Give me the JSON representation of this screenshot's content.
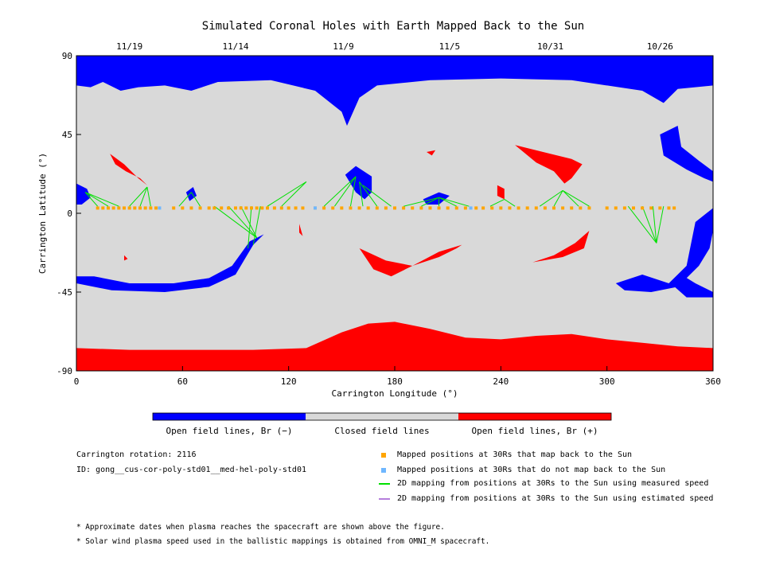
{
  "chart_data": {
    "type": "map",
    "title": "Simulated Coronal Holes with Earth Mapped Back to the Sun",
    "xlabel": "Carrington Longitude (°)",
    "ylabel": "Carrington Latitude (°)",
    "xlim": [
      0,
      360
    ],
    "ylim": [
      -90,
      90
    ],
    "x_ticks": [
      {
        "value": 0,
        "label": "0"
      },
      {
        "value": 60,
        "label": "60"
      },
      {
        "value": 120,
        "label": "120"
      },
      {
        "value": 180,
        "label": "180"
      },
      {
        "value": 240,
        "label": "240"
      },
      {
        "value": 300,
        "label": "300"
      },
      {
        "value": 360,
        "label": "360"
      }
    ],
    "y_ticks": [
      {
        "value": 90,
        "label": "90"
      },
      {
        "value": 45,
        "label": "45"
      },
      {
        "value": 0,
        "label": "0"
      },
      {
        "value": -45,
        "label": "-45"
      },
      {
        "value": -90,
        "label": "-90"
      }
    ],
    "top_date_ticks": [
      {
        "lon": 30,
        "label": "11/19"
      },
      {
        "lon": 90,
        "label": "11/14"
      },
      {
        "lon": 151,
        "label": "11/9"
      },
      {
        "lon": 211,
        "label": "11/5"
      },
      {
        "lon": 268,
        "label": "10/31"
      },
      {
        "lon": 330,
        "label": "10/26"
      }
    ],
    "colors": {
      "open_negative": "#0000ff",
      "closed": "#d9d9d9",
      "open_positive": "#ff0000",
      "mapped": "#ffa500",
      "not_mapped": "#6fb7ff",
      "measured_line": "#00e000",
      "estimated_line": "#b57edc"
    },
    "regions": [
      {
        "polarity": "negative",
        "points": [
          [
            0,
            90
          ],
          [
            360,
            90
          ],
          [
            360,
            73
          ],
          [
            340,
            71
          ],
          [
            332,
            63
          ],
          [
            320,
            70
          ],
          [
            280,
            76
          ],
          [
            240,
            77
          ],
          [
            200,
            76
          ],
          [
            170,
            73
          ],
          [
            160,
            66
          ],
          [
            153,
            50
          ],
          [
            150,
            58
          ],
          [
            135,
            70
          ],
          [
            110,
            76
          ],
          [
            80,
            75
          ],
          [
            65,
            70
          ],
          [
            50,
            73
          ],
          [
            35,
            72
          ],
          [
            25,
            70
          ],
          [
            15,
            75
          ],
          [
            8,
            72
          ],
          [
            0,
            73
          ]
        ]
      },
      {
        "polarity": "positive",
        "points": [
          [
            0,
            -90
          ],
          [
            360,
            -90
          ],
          [
            360,
            -77
          ],
          [
            340,
            -76
          ],
          [
            320,
            -74
          ],
          [
            300,
            -72
          ],
          [
            280,
            -69
          ],
          [
            260,
            -70
          ],
          [
            240,
            -72
          ],
          [
            220,
            -71
          ],
          [
            200,
            -66
          ],
          [
            180,
            -62
          ],
          [
            165,
            -63
          ],
          [
            150,
            -68
          ],
          [
            130,
            -77
          ],
          [
            100,
            -78
          ],
          [
            60,
            -78
          ],
          [
            30,
            -78
          ],
          [
            0,
            -77
          ]
        ]
      },
      {
        "polarity": "negative",
        "points": [
          [
            0,
            -40
          ],
          [
            20,
            -44
          ],
          [
            50,
            -45
          ],
          [
            75,
            -42
          ],
          [
            90,
            -35
          ],
          [
            100,
            -18
          ],
          [
            106,
            -12
          ],
          [
            98,
            -16
          ],
          [
            88,
            -30
          ],
          [
            75,
            -37
          ],
          [
            55,
            -40
          ],
          [
            30,
            -40
          ],
          [
            10,
            -36
          ],
          [
            0,
            -36
          ]
        ]
      },
      {
        "polarity": "negative",
        "points": [
          [
            0,
            17
          ],
          [
            6,
            14
          ],
          [
            8,
            9
          ],
          [
            3,
            5
          ],
          [
            0,
            5
          ]
        ]
      },
      {
        "polarity": "negative",
        "points": [
          [
            340,
            50
          ],
          [
            330,
            45
          ],
          [
            332,
            33
          ],
          [
            345,
            25
          ],
          [
            355,
            20
          ],
          [
            360,
            18
          ],
          [
            360,
            24
          ],
          [
            352,
            30
          ],
          [
            342,
            38
          ]
        ]
      },
      {
        "polarity": "negative",
        "points": [
          [
            360,
            3
          ],
          [
            350,
            -5
          ],
          [
            345,
            -30
          ],
          [
            335,
            -40
          ],
          [
            320,
            -35
          ],
          [
            305,
            -40
          ],
          [
            310,
            -44
          ],
          [
            325,
            -45
          ],
          [
            340,
            -42
          ],
          [
            352,
            -30
          ],
          [
            358,
            -20
          ],
          [
            360,
            -10
          ]
        ]
      },
      {
        "polarity": "negative",
        "points": [
          [
            336,
            -40
          ],
          [
            345,
            -48
          ],
          [
            360,
            -48
          ],
          [
            360,
            -45
          ],
          [
            350,
            -40
          ],
          [
            342,
            -35
          ]
        ]
      },
      {
        "polarity": "negative",
        "points": [
          [
            158,
            27
          ],
          [
            167,
            21
          ],
          [
            167,
            12
          ],
          [
            163,
            8
          ],
          [
            158,
            12
          ],
          [
            152,
            22
          ]
        ]
      },
      {
        "polarity": "negative",
        "points": [
          [
            196,
            8
          ],
          [
            205,
            12
          ],
          [
            211,
            10
          ],
          [
            205,
            5
          ],
          [
            198,
            5
          ]
        ]
      },
      {
        "polarity": "negative",
        "points": [
          [
            62,
            12
          ],
          [
            66,
            15
          ],
          [
            68,
            10
          ],
          [
            64,
            7
          ]
        ]
      },
      {
        "polarity": "positive",
        "points": [
          [
            19,
            34
          ],
          [
            27,
            28
          ],
          [
            35,
            20
          ],
          [
            40,
            16
          ],
          [
            36,
            20
          ],
          [
            28,
            24
          ],
          [
            22,
            28
          ]
        ]
      },
      {
        "polarity": "positive",
        "points": [
          [
            248,
            39
          ],
          [
            268,
            34
          ],
          [
            280,
            31
          ],
          [
            286,
            28
          ],
          [
            280,
            20
          ],
          [
            276,
            17
          ],
          [
            270,
            24
          ],
          [
            260,
            29
          ]
        ]
      },
      {
        "polarity": "positive",
        "points": [
          [
            160,
            -20
          ],
          [
            175,
            -27
          ],
          [
            190,
            -30
          ],
          [
            205,
            -25
          ],
          [
            215,
            -20
          ],
          [
            218,
            -18
          ],
          [
            205,
            -22
          ],
          [
            190,
            -30
          ],
          [
            178,
            -36
          ],
          [
            168,
            -32
          ]
        ]
      },
      {
        "polarity": "positive",
        "points": [
          [
            258,
            -28
          ],
          [
            270,
            -24
          ],
          [
            282,
            -17
          ],
          [
            290,
            -10
          ],
          [
            287,
            -20
          ],
          [
            275,
            -25
          ]
        ]
      },
      {
        "polarity": "positive",
        "points": [
          [
            238,
            16
          ],
          [
            242,
            14
          ],
          [
            242,
            8
          ],
          [
            238,
            10
          ]
        ]
      },
      {
        "polarity": "positive",
        "points": [
          [
            198,
            35
          ],
          [
            203,
            36
          ],
          [
            201,
            33
          ]
        ]
      },
      {
        "polarity": "positive",
        "points": [
          [
            126,
            -6
          ],
          [
            128,
            -13
          ],
          [
            126,
            -11
          ]
        ]
      },
      {
        "polarity": "positive",
        "points": [
          [
            27,
            -24
          ],
          [
            29,
            -26
          ],
          [
            27,
            -27
          ]
        ]
      }
    ],
    "mapped_positions_lon": [
      12,
      15,
      18,
      21,
      24,
      27,
      30,
      33,
      36,
      39,
      42,
      45,
      55,
      60,
      65,
      70,
      75,
      78,
      82,
      86,
      90,
      93,
      96,
      99,
      102,
      105,
      108,
      112,
      116,
      120,
      124,
      128,
      135,
      140,
      145,
      150,
      155,
      160,
      165,
      170,
      175,
      180,
      185,
      190,
      195,
      200,
      205,
      210,
      215,
      220,
      226,
      230,
      235,
      240,
      245,
      250,
      255,
      260,
      265,
      270,
      275,
      280,
      285,
      290,
      300,
      305,
      310,
      315,
      320,
      325,
      330,
      335,
      338
    ],
    "unmapped_positions_lon": [
      47,
      135,
      223
    ],
    "measured_mapping_lines": [
      [
        [
          5,
          12
        ],
        [
          12,
          4
        ]
      ],
      [
        [
          5,
          12
        ],
        [
          18,
          4
        ]
      ],
      [
        [
          5,
          12
        ],
        [
          24,
          4
        ]
      ],
      [
        [
          40,
          15
        ],
        [
          30,
          4
        ]
      ],
      [
        [
          40,
          15
        ],
        [
          36,
          4
        ]
      ],
      [
        [
          40,
          15
        ],
        [
          42,
          4
        ]
      ],
      [
        [
          65,
          12
        ],
        [
          58,
          4
        ]
      ],
      [
        [
          65,
          12
        ],
        [
          70,
          4
        ]
      ],
      [
        [
          102,
          -14
        ],
        [
          78,
          4
        ]
      ],
      [
        [
          102,
          -14
        ],
        [
          86,
          4
        ]
      ],
      [
        [
          102,
          -14
        ],
        [
          93,
          4
        ]
      ],
      [
        [
          97,
          -20
        ],
        [
          99,
          4
        ]
      ],
      [
        [
          100,
          -18
        ],
        [
          104,
          4
        ]
      ],
      [
        [
          130,
          18
        ],
        [
          108,
          4
        ]
      ],
      [
        [
          130,
          18
        ],
        [
          116,
          4
        ]
      ],
      [
        [
          158,
          21
        ],
        [
          140,
          4
        ]
      ],
      [
        [
          158,
          21
        ],
        [
          146,
          4
        ]
      ],
      [
        [
          158,
          21
        ],
        [
          155,
          4
        ]
      ],
      [
        [
          160,
          18
        ],
        [
          162,
          4
        ]
      ],
      [
        [
          160,
          18
        ],
        [
          170,
          4
        ]
      ],
      [
        [
          162,
          16
        ],
        [
          178,
          4
        ]
      ],
      [
        [
          205,
          9
        ],
        [
          185,
          4
        ]
      ],
      [
        [
          205,
          9
        ],
        [
          195,
          4
        ]
      ],
      [
        [
          205,
          9
        ],
        [
          205,
          4
        ]
      ],
      [
        [
          205,
          9
        ],
        [
          215,
          4
        ]
      ],
      [
        [
          205,
          9
        ],
        [
          222,
          4
        ]
      ],
      [
        [
          242,
          8
        ],
        [
          234,
          4
        ]
      ],
      [
        [
          242,
          8
        ],
        [
          248,
          4
        ]
      ],
      [
        [
          275,
          13
        ],
        [
          262,
          4
        ]
      ],
      [
        [
          275,
          13
        ],
        [
          270,
          4
        ]
      ],
      [
        [
          275,
          13
        ],
        [
          284,
          4
        ]
      ],
      [
        [
          275,
          13
        ],
        [
          290,
          4
        ]
      ],
      [
        [
          328,
          -17
        ],
        [
          312,
          4
        ]
      ],
      [
        [
          328,
          -17
        ],
        [
          320,
          4
        ]
      ],
      [
        [
          328,
          -17
        ],
        [
          326,
          4
        ]
      ],
      [
        [
          328,
          -17
        ],
        [
          332,
          4
        ]
      ]
    ]
  },
  "colorbar": {
    "label_negative": "Open field lines, Br (−)",
    "label_closed": "Closed field lines",
    "label_positive": "Open field lines, Br (+)"
  },
  "info": {
    "rotation": "Carrington rotation: 2116",
    "id": "ID: gong__cus-cor-poly-std01__med-hel-poly-std01"
  },
  "legend": {
    "mapped": "Mapped positions at 30Rs that map back to the Sun",
    "not_mapped": "Mapped positions at 30Rs that do not map back to the Sun",
    "measured": "2D mapping from positions at 30Rs to the Sun using measured speed",
    "estimated": "2D mapping from positions at 30Rs to the Sun using estimated speed"
  },
  "footnotes": {
    "note1": "* Approximate dates when plasma reaches the spacecraft are shown above the figure.",
    "note2": "* Solar wind plasma speed used in the ballistic mappings is obtained from OMNI_M spacecraft."
  }
}
